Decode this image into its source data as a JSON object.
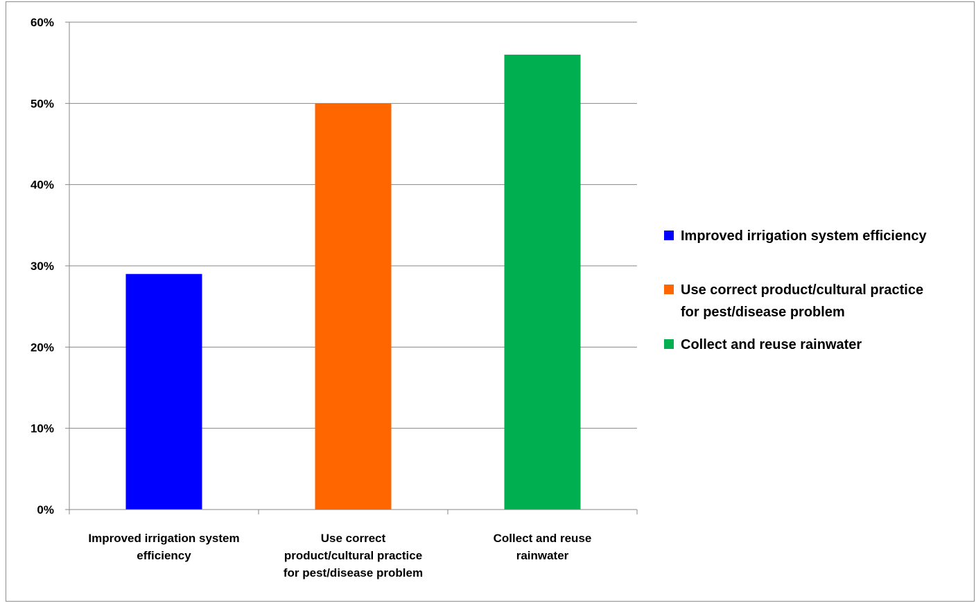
{
  "chart_data": {
    "type": "bar",
    "title": "",
    "xlabel": "",
    "ylabel": "",
    "ylim": [
      0,
      0.6
    ],
    "yticks": [
      0,
      0.1,
      0.2,
      0.3,
      0.4,
      0.5,
      0.6
    ],
    "ytick_labels": [
      "0%",
      "10%",
      "20%",
      "30%",
      "40%",
      "50%",
      "60%"
    ],
    "grid": true,
    "legend_position": "right",
    "categories": [
      [
        "Improved irrigation system",
        "efficiency"
      ],
      [
        "Use correct",
        "product/cultural practice",
        "for pest/disease problem"
      ],
      [
        "Collect and reuse",
        "rainwater"
      ]
    ],
    "values": [
      0.29,
      0.5,
      0.56
    ],
    "colors": [
      "#0000ff",
      "#ff6600",
      "#00b050"
    ],
    "legend": [
      {
        "lines": [
          "Improved irrigation system efficiency"
        ],
        "color": "#0000ff"
      },
      {
        "lines": [
          "Use correct product/cultural practice",
          "for pest/disease problem"
        ],
        "color": "#ff6600"
      },
      {
        "lines": [
          "Collect and reuse rainwater"
        ],
        "color": "#00b050"
      }
    ]
  }
}
